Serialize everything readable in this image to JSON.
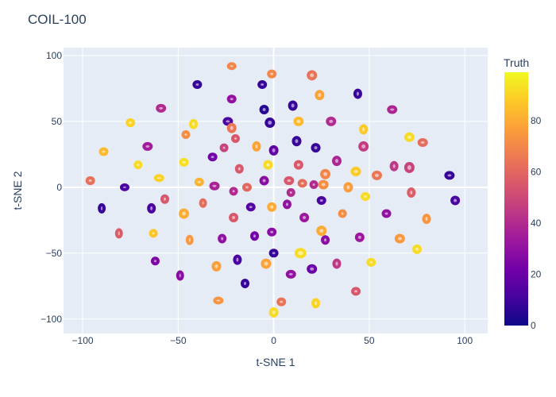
{
  "chart_data": {
    "type": "scatter",
    "title": "COIL-100",
    "xlabel": "t-SNE 1",
    "ylabel": "t-SNE 2",
    "xlim": [
      -110,
      112
    ],
    "ylim": [
      -111,
      106
    ],
    "xticks": [
      -100,
      -50,
      0,
      50,
      100
    ],
    "xtick_labels": [
      "−100",
      "−50",
      "0",
      "50",
      "100"
    ],
    "yticks": [
      100,
      50,
      0,
      -50,
      -100
    ],
    "ytick_labels": [
      "100",
      "50",
      "0",
      "−50",
      "−100"
    ],
    "grid": true,
    "colorbar": {
      "title": "Truth",
      "range": [
        0,
        99
      ],
      "ticks": [
        0,
        20,
        40,
        60,
        80
      ],
      "tick_labels": [
        "0",
        "20",
        "40",
        "60",
        "80"
      ],
      "colorscale": [
        "#0d0887",
        "#46039f",
        "#7201a8",
        "#9c179e",
        "#bd3786",
        "#d8576b",
        "#ed7953",
        "#fb9f3a",
        "#fdca26",
        "#f0f921"
      ]
    },
    "clusters": [
      {
        "x": -96,
        "y": 5,
        "v": 63,
        "rx": 3.5,
        "ry": 3
      },
      {
        "x": -90,
        "y": -16,
        "v": 8,
        "rx": 2.5,
        "ry": 4
      },
      {
        "x": -89,
        "y": 27,
        "v": 84,
        "rx": 3.5,
        "ry": 3
      },
      {
        "x": -81,
        "y": -35,
        "v": 57,
        "rx": 2.5,
        "ry": 4
      },
      {
        "x": -78,
        "y": 0,
        "v": 12,
        "rx": 3.5,
        "ry": 2.5
      },
      {
        "x": -75,
        "y": 49,
        "v": 90,
        "rx": 3.5,
        "ry": 3
      },
      {
        "x": -71,
        "y": 17,
        "v": 92,
        "rx": 3,
        "ry": 3
      },
      {
        "x": -66,
        "y": 31,
        "v": 35,
        "rx": 4,
        "ry": 3
      },
      {
        "x": -64,
        "y": -16,
        "v": 12,
        "rx": 3,
        "ry": 4
      },
      {
        "x": -63,
        "y": -35,
        "v": 87,
        "rx": 3,
        "ry": 3
      },
      {
        "x": -62,
        "y": -56,
        "v": 25,
        "rx": 3,
        "ry": 3
      },
      {
        "x": -60,
        "y": 7,
        "v": 90,
        "rx": 4,
        "ry": 2.5
      },
      {
        "x": -59,
        "y": 60,
        "v": 40,
        "rx": 4,
        "ry": 3
      },
      {
        "x": -57,
        "y": -9,
        "v": 55,
        "rx": 3,
        "ry": 3.5
      },
      {
        "x": -49,
        "y": -67,
        "v": 28,
        "rx": 2.5,
        "ry": 4
      },
      {
        "x": -47,
        "y": 19,
        "v": 93,
        "rx": 3.5,
        "ry": 3
      },
      {
        "x": -47,
        "y": -20,
        "v": 80,
        "rx": 4,
        "ry": 4
      },
      {
        "x": -46,
        "y": 40,
        "v": 72,
        "rx": 3,
        "ry": 3
      },
      {
        "x": -44,
        "y": -40,
        "v": 75,
        "rx": 2.5,
        "ry": 4
      },
      {
        "x": -42,
        "y": 48,
        "v": 92,
        "rx": 3,
        "ry": 4
      },
      {
        "x": -40,
        "y": 78,
        "v": 8,
        "rx": 3.5,
        "ry": 3
      },
      {
        "x": -39,
        "y": 4,
        "v": 82,
        "rx": 3.5,
        "ry": 3
      },
      {
        "x": -37,
        "y": -12,
        "v": 62,
        "rx": 2.5,
        "ry": 3.5
      },
      {
        "x": -32,
        "y": 23,
        "v": 22,
        "rx": 3.5,
        "ry": 3
      },
      {
        "x": -31,
        "y": 1,
        "v": 37,
        "rx": 4,
        "ry": 3
      },
      {
        "x": -30,
        "y": -60,
        "v": 77,
        "rx": 3.5,
        "ry": 4
      },
      {
        "x": -29,
        "y": -86,
        "v": 74,
        "rx": 4,
        "ry": 2.5
      },
      {
        "x": -27,
        "y": -39,
        "v": 30,
        "rx": 3,
        "ry": 3.5
      },
      {
        "x": -26,
        "y": 30,
        "v": 48,
        "rx": 3,
        "ry": 3
      },
      {
        "x": -24,
        "y": 50,
        "v": 12,
        "rx": 4,
        "ry": 3
      },
      {
        "x": -22,
        "y": 92,
        "v": 70,
        "rx": 3.5,
        "ry": 2.5
      },
      {
        "x": -22,
        "y": 67,
        "v": 30,
        "rx": 3.5,
        "ry": 3
      },
      {
        "x": -22,
        "y": 45,
        "v": 65,
        "rx": 3.5,
        "ry": 4
      },
      {
        "x": -21,
        "y": -23,
        "v": 55,
        "rx": 3.5,
        "ry": 3.5
      },
      {
        "x": -21,
        "y": -3,
        "v": 40,
        "rx": 3,
        "ry": 3
      },
      {
        "x": -20,
        "y": 37,
        "v": 55,
        "rx": 3,
        "ry": 3
      },
      {
        "x": -19,
        "y": -55,
        "v": 12,
        "rx": 3,
        "ry": 4
      },
      {
        "x": -18,
        "y": 14,
        "v": 55,
        "rx": 3,
        "ry": 3.5
      },
      {
        "x": -15,
        "y": -73,
        "v": 8,
        "rx": 3,
        "ry": 3.5
      },
      {
        "x": -14,
        "y": 0,
        "v": 60,
        "rx": 3.5,
        "ry": 3
      },
      {
        "x": -12,
        "y": -15,
        "v": 15,
        "rx": 3.5,
        "ry": 3
      },
      {
        "x": -10,
        "y": -37,
        "v": 22,
        "rx": 3,
        "ry": 3.5
      },
      {
        "x": -9,
        "y": 31,
        "v": 78,
        "rx": 3,
        "ry": 4
      },
      {
        "x": -6,
        "y": 78,
        "v": 8,
        "rx": 3.5,
        "ry": 3
      },
      {
        "x": -5,
        "y": 59,
        "v": 5,
        "rx": 3.5,
        "ry": 3.5
      },
      {
        "x": -5,
        "y": 5,
        "v": 28,
        "rx": 3.5,
        "ry": 3.5
      },
      {
        "x": -4,
        "y": -58,
        "v": 78,
        "rx": 4,
        "ry": 4
      },
      {
        "x": -3,
        "y": 17,
        "v": 92,
        "rx": 3.5,
        "ry": 3.5
      },
      {
        "x": -2,
        "y": 49,
        "v": 8,
        "rx": 4,
        "ry": 4
      },
      {
        "x": -1,
        "y": -15,
        "v": 80,
        "rx": 3.5,
        "ry": 3.5
      },
      {
        "x": -1,
        "y": -34,
        "v": 28,
        "rx": 3.5,
        "ry": 3
      },
      {
        "x": -1,
        "y": 86,
        "v": 70,
        "rx": 3.5,
        "ry": 3
      },
      {
        "x": 0,
        "y": -50,
        "v": 8,
        "rx": 3.5,
        "ry": 3
      },
      {
        "x": 0,
        "y": 28,
        "v": 18,
        "rx": 3.5,
        "ry": 4
      },
      {
        "x": 0,
        "y": -95,
        "v": 92,
        "rx": 3.5,
        "ry": 4
      },
      {
        "x": 4,
        "y": -87,
        "v": 64,
        "rx": 3.5,
        "ry": 3
      },
      {
        "x": 7,
        "y": -13,
        "v": 30,
        "rx": 3,
        "ry": 3.5
      },
      {
        "x": 8,
        "y": 5,
        "v": 55,
        "rx": 4,
        "ry": 3
      },
      {
        "x": 9,
        "y": -4,
        "v": 40,
        "rx": 3,
        "ry": 3
      },
      {
        "x": 9,
        "y": -66,
        "v": 30,
        "rx": 4,
        "ry": 3
      },
      {
        "x": 10,
        "y": 62,
        "v": 8,
        "rx": 3.5,
        "ry": 4
      },
      {
        "x": 12,
        "y": 35,
        "v": 8,
        "rx": 3.5,
        "ry": 4
      },
      {
        "x": 13,
        "y": 17,
        "v": 55,
        "rx": 3.5,
        "ry": 3.5
      },
      {
        "x": 13,
        "y": 50,
        "v": 84,
        "rx": 4,
        "ry": 3.5
      },
      {
        "x": 14,
        "y": -50,
        "v": 92,
        "rx": 5,
        "ry": 4
      },
      {
        "x": 15,
        "y": 3,
        "v": 62,
        "rx": 3.5,
        "ry": 3
      },
      {
        "x": 16,
        "y": -23,
        "v": 33,
        "rx": 3.5,
        "ry": 3.5
      },
      {
        "x": 20,
        "y": 85,
        "v": 64,
        "rx": 4,
        "ry": 4
      },
      {
        "x": 20,
        "y": -62,
        "v": 20,
        "rx": 4,
        "ry": 3.5
      },
      {
        "x": 21,
        "y": 2,
        "v": 40,
        "rx": 3,
        "ry": 3
      },
      {
        "x": 22,
        "y": 30,
        "v": 8,
        "rx": 3.5,
        "ry": 3.5
      },
      {
        "x": 22,
        "y": -88,
        "v": 90,
        "rx": 3,
        "ry": 4
      },
      {
        "x": 24,
        "y": 70,
        "v": 78,
        "rx": 3.5,
        "ry": 4
      },
      {
        "x": 25,
        "y": -10,
        "v": 12,
        "rx": 3.5,
        "ry": 3
      },
      {
        "x": 25,
        "y": -33,
        "v": 80,
        "rx": 4,
        "ry": 4
      },
      {
        "x": 26,
        "y": 2,
        "v": 72,
        "rx": 4,
        "ry": 3.5
      },
      {
        "x": 27,
        "y": 10,
        "v": 70,
        "rx": 4,
        "ry": 4
      },
      {
        "x": 27,
        "y": -40,
        "v": 28,
        "rx": 3,
        "ry": 3.5
      },
      {
        "x": 30,
        "y": 50,
        "v": 40,
        "rx": 4,
        "ry": 3.5
      },
      {
        "x": 33,
        "y": 20,
        "v": 38,
        "rx": 3.5,
        "ry": 4
      },
      {
        "x": 33,
        "y": -58,
        "v": 45,
        "rx": 3,
        "ry": 4
      },
      {
        "x": 36,
        "y": -20,
        "v": 72,
        "rx": 3,
        "ry": 3
      },
      {
        "x": 39,
        "y": 0,
        "v": 76,
        "rx": 3.5,
        "ry": 4
      },
      {
        "x": 43,
        "y": -79,
        "v": 55,
        "rx": 3.5,
        "ry": 3
      },
      {
        "x": 43,
        "y": 12,
        "v": 88,
        "rx": 4,
        "ry": 3.5
      },
      {
        "x": 44,
        "y": 71,
        "v": 8,
        "rx": 3,
        "ry": 4
      },
      {
        "x": 45,
        "y": -38,
        "v": 33,
        "rx": 3.5,
        "ry": 3.5
      },
      {
        "x": 47,
        "y": 31,
        "v": 46,
        "rx": 4,
        "ry": 4
      },
      {
        "x": 47,
        "y": 44,
        "v": 88,
        "rx": 3,
        "ry": 4
      },
      {
        "x": 48,
        "y": -7,
        "v": 92,
        "rx": 3.5,
        "ry": 3
      },
      {
        "x": 51,
        "y": -57,
        "v": 92,
        "rx": 3.5,
        "ry": 3
      },
      {
        "x": 54,
        "y": 9,
        "v": 65,
        "rx": 4,
        "ry": 3.5
      },
      {
        "x": 59,
        "y": -20,
        "v": 30,
        "rx": 3.5,
        "ry": 3
      },
      {
        "x": 62,
        "y": 59,
        "v": 38,
        "rx": 4,
        "ry": 3
      },
      {
        "x": 63,
        "y": 16,
        "v": 45,
        "rx": 3,
        "ry": 4
      },
      {
        "x": 66,
        "y": -39,
        "v": 75,
        "rx": 4,
        "ry": 3.5
      },
      {
        "x": 71,
        "y": 38,
        "v": 92,
        "rx": 4,
        "ry": 3.5
      },
      {
        "x": 71,
        "y": 15,
        "v": 48,
        "rx": 4,
        "ry": 4.5
      },
      {
        "x": 72,
        "y": -4,
        "v": 57,
        "rx": 3,
        "ry": 4
      },
      {
        "x": 75,
        "y": -47,
        "v": 92,
        "rx": 3.5,
        "ry": 3.5
      },
      {
        "x": 78,
        "y": 34,
        "v": 62,
        "rx": 4,
        "ry": 3
      },
      {
        "x": 80,
        "y": -24,
        "v": 74,
        "rx": 3,
        "ry": 4
      },
      {
        "x": 92,
        "y": 9,
        "v": 8,
        "rx": 4,
        "ry": 3
      },
      {
        "x": 95,
        "y": -10,
        "v": 12,
        "rx": 3.5,
        "ry": 3.5
      }
    ]
  }
}
